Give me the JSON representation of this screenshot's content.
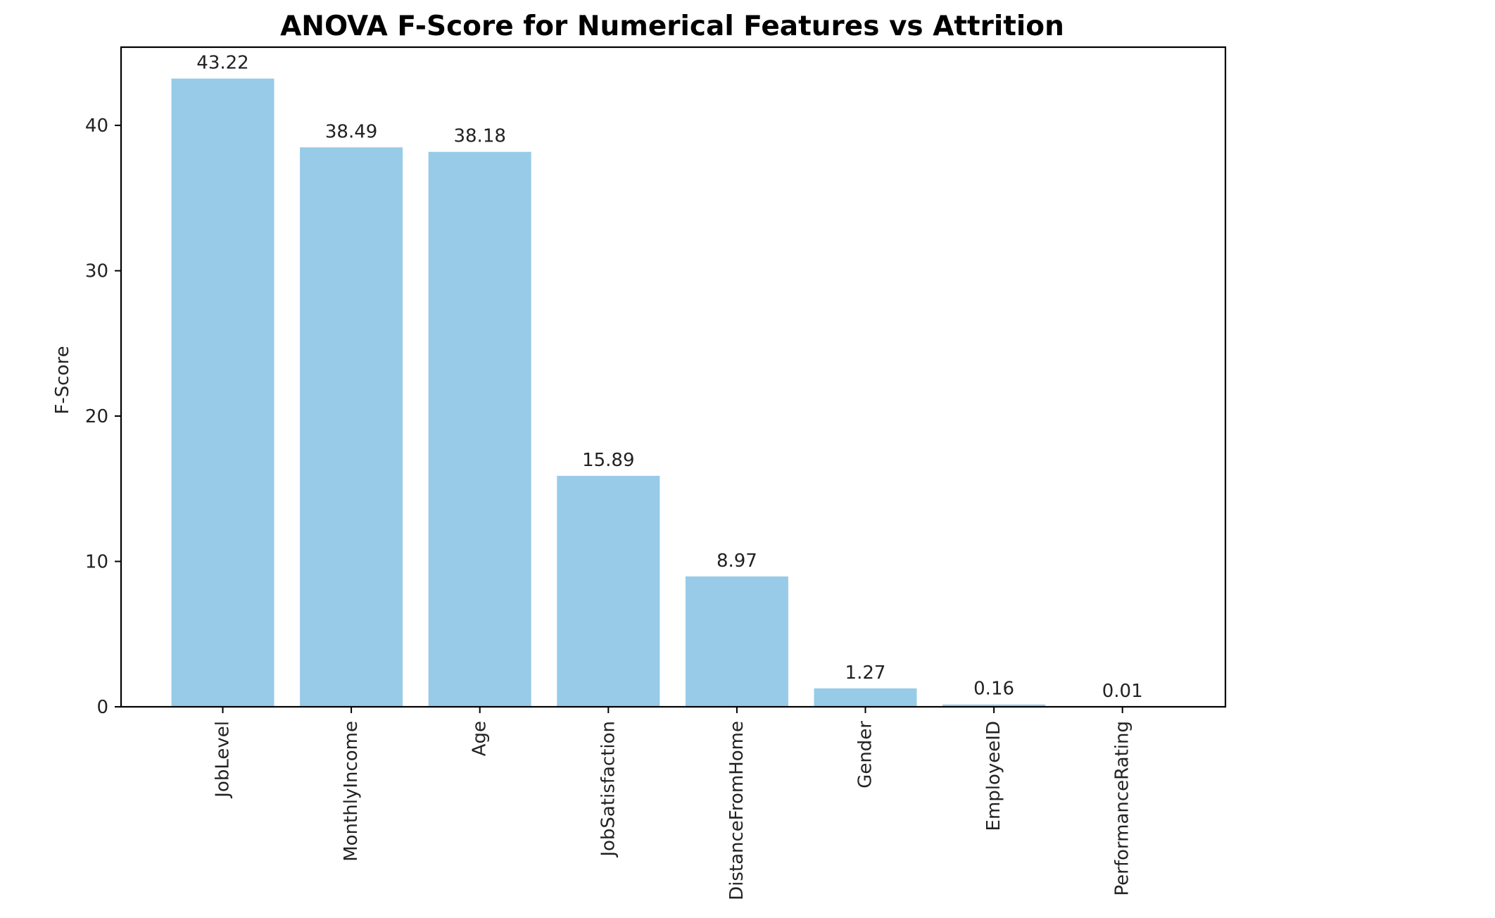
{
  "chart_data": {
    "type": "bar",
    "title": "ANOVA F-Score for Numerical Features vs Attrition",
    "xlabel": "",
    "ylabel": "F-Score",
    "categories": [
      "JobLevel",
      "MonthlyIncome",
      "Age",
      "JobSatisfaction",
      "DistanceFromHome",
      "Gender",
      "EmployeeID",
      "PerformanceRating"
    ],
    "values": [
      43.22,
      38.49,
      38.18,
      15.89,
      8.97,
      1.27,
      0.16,
      0.01
    ],
    "value_labels": [
      "43.22",
      "38.49",
      "38.18",
      "15.89",
      "8.97",
      "1.27",
      "0.16",
      "0.01"
    ],
    "ylim": [
      0,
      45.38
    ],
    "yticks": [
      0,
      10,
      20,
      30,
      40
    ],
    "ytick_labels": [
      "0",
      "10",
      "20",
      "30",
      "40"
    ],
    "grid": false,
    "bar_color": "#97cbe8",
    "x_tick_rotation": "vertical"
  }
}
